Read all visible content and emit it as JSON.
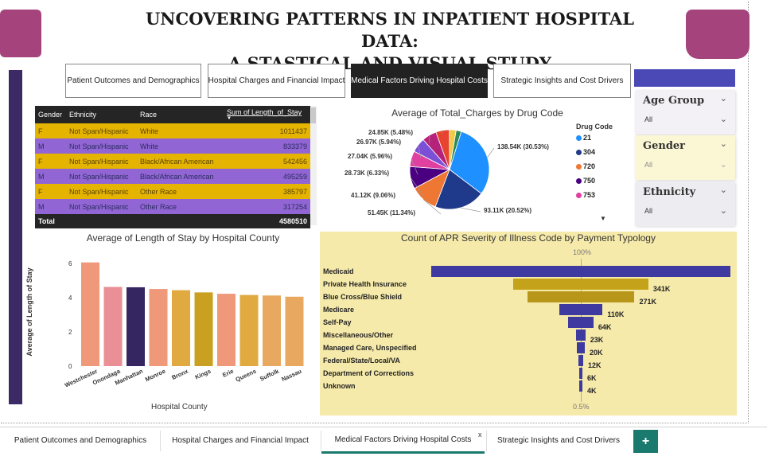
{
  "title_line1": "UNCOVERING PATTERNS IN INPATIENT HOSPITAL DATA:",
  "title_line2": "A STASTICAL AND VISUAL STUDY",
  "nav": [
    {
      "label": "Patient Outcomes and Demographics"
    },
    {
      "label": "Hospital Charges and Financial Impact"
    },
    {
      "label": "Medical Factors Driving Hospital Costs"
    },
    {
      "label": "Strategic Insights and Cost Drivers"
    }
  ],
  "table": {
    "headers": [
      "Gender",
      "Ethnicity",
      "Race",
      "Sum of Length_of_Stay"
    ],
    "rows": [
      {
        "gender": "F",
        "ethnicity": "Not Span/Hispanic",
        "race": "White",
        "value": "1011437"
      },
      {
        "gender": "M",
        "ethnicity": "Not Span/Hispanic",
        "race": "White",
        "value": "833379"
      },
      {
        "gender": "F",
        "ethnicity": "Not Span/Hispanic",
        "race": "Black/African American",
        "value": "542456"
      },
      {
        "gender": "M",
        "ethnicity": "Not Span/Hispanic",
        "race": "Black/African American",
        "value": "495259"
      },
      {
        "gender": "F",
        "ethnicity": "Not Span/Hispanic",
        "race": "Other Race",
        "value": "385797"
      },
      {
        "gender": "M",
        "ethnicity": "Not Span/Hispanic",
        "race": "Other Race",
        "value": "317254"
      }
    ],
    "total_label": "Total",
    "total_value": "4580510"
  },
  "slicers": {
    "age": {
      "title": "Age Group",
      "value": "All"
    },
    "gender": {
      "title": "Gender",
      "value": "All"
    },
    "ethnicity": {
      "title": "Ethnicity",
      "value": "All"
    }
  },
  "colors": {
    "purple_dark": "#3b2a66",
    "magenta": "#a5447c",
    "funnel_purple": "#3f3aa0",
    "funnel_gold": "#c4a21a",
    "teal": "#1b7a6e"
  },
  "chart_data": [
    {
      "type": "pie",
      "title": "Average of Total_Charges by Drug Code",
      "legend_title": "Drug Code",
      "legend": [
        {
          "label": "21",
          "color": "#1e90ff"
        },
        {
          "label": "304",
          "color": "#1f3a8a"
        },
        {
          "label": "720",
          "color": "#ee7733"
        },
        {
          "label": "750",
          "color": "#4b0082"
        },
        {
          "label": "753",
          "color": "#e040a0"
        }
      ],
      "legend_placement": "right",
      "slices": [
        {
          "label": "138.54K (30.53%)",
          "value": 138.54,
          "color": "#1e90ff"
        },
        {
          "label": "93.11K (20.52%)",
          "value": 93.11,
          "color": "#1f3a8a"
        },
        {
          "label": "51.45K (11.34%)",
          "value": 51.45,
          "color": "#ee7733"
        },
        {
          "label": "41.12K (9.06%)",
          "value": 41.12,
          "color": "#4b0082"
        },
        {
          "label": "28.73K (6.33%)",
          "value": 28.73,
          "color": "#e040a0"
        },
        {
          "label": "27.04K (5.96%)",
          "value": 27.04,
          "color": "#7b4fd6"
        },
        {
          "label": "26.97K (5.94%)",
          "value": 26.97,
          "color": "#b5227a"
        },
        {
          "label": "24.85K (5.48%)",
          "value": 24.85,
          "color": "#e8432e"
        },
        {
          "label": "",
          "value": 12.5,
          "color": "#f2c94c"
        },
        {
          "label": "",
          "value": 9.5,
          "color": "#2e8b57"
        }
      ]
    },
    {
      "type": "bar",
      "title": "Average of Length of Stay by Hospital County",
      "xlabel": "Hospital County",
      "ylabel": "Average of Length of Stay",
      "ylim": [
        0,
        6.5
      ],
      "yticks": [
        "0",
        "2",
        "4",
        "6"
      ],
      "categories": [
        "Westchester",
        "Onondaga",
        "Manhattan",
        "Monroe",
        "Bronx",
        "Kings",
        "Erie",
        "Queens",
        "Suffolk",
        "Nassau"
      ],
      "values": [
        6.05,
        4.62,
        4.6,
        4.5,
        4.43,
        4.3,
        4.22,
        4.15,
        4.12,
        4.05
      ],
      "colors": [
        "#f0987a",
        "#ea8f95",
        "#352560",
        "#f0987a",
        "#e0aa40",
        "#c9a020",
        "#f0987a",
        "#e0aa40",
        "#e8a860",
        "#e8a860"
      ]
    },
    {
      "type": "bar",
      "orientation": "funnel",
      "title": "Count of APR Severity of Illness Code by Payment Typology",
      "top_label": "100%",
      "bottom_label": "0.5%",
      "categories": [
        "Medicaid",
        "Private Health Insurance",
        "Blue Cross/Blue Shield",
        "Medicare",
        "Self-Pay",
        "Miscellaneous/Other",
        "Managed Care, Unspecified",
        "Federal/State/Local/VA",
        "Department of Corrections",
        "Unknown"
      ],
      "values": [
        755,
        341,
        271,
        110,
        64,
        23,
        20,
        12,
        6,
        4
      ],
      "value_labels": [
        "",
        "341K",
        "271K",
        "110K",
        "64K",
        "23K",
        "20K",
        "12K",
        "6K",
        "4K"
      ],
      "colors": [
        "#3f3aa0",
        "#c4a21a",
        "#b8961a",
        "#3f3aa0",
        "#3f3aa0",
        "#3f3aa0",
        "#3f3aa0",
        "#3f3aa0",
        "#3f3aa0",
        "#3f3aa0"
      ]
    }
  ],
  "tabs": [
    {
      "label": "Patient Outcomes and Demographics"
    },
    {
      "label": "Hospital Charges and Financial Impact"
    },
    {
      "label": "Medical Factors Driving Hospital Costs"
    },
    {
      "label": "Strategic Insights and Cost Drivers"
    }
  ],
  "tab_close": "x",
  "tab_add": "+"
}
